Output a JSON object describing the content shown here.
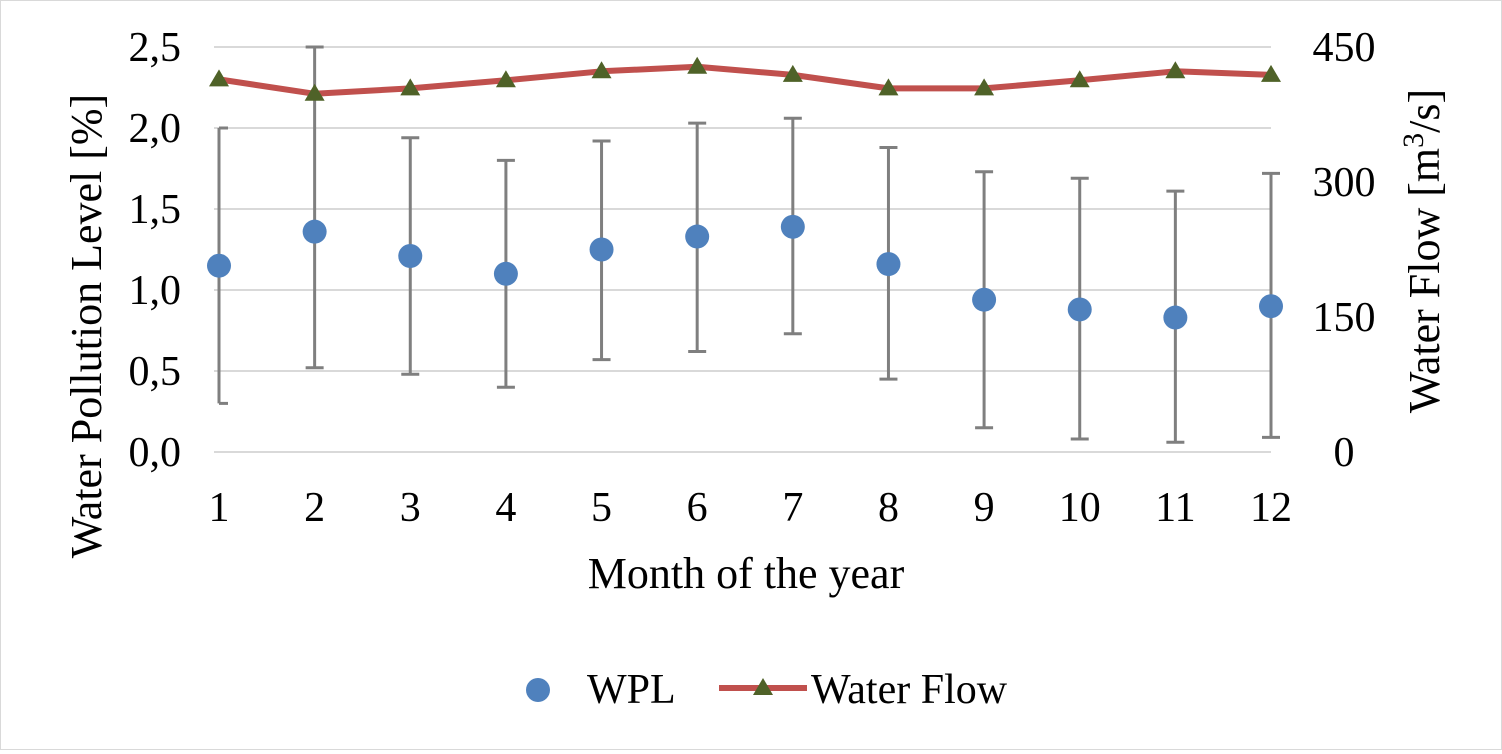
{
  "chart_data": {
    "type": "scatter",
    "xlabel": "Month of the year",
    "ylabel": "Water Pollution Level [%]",
    "y2label": "Water Flow [m3/s]",
    "x": [
      1,
      2,
      3,
      4,
      5,
      6,
      7,
      8,
      9,
      10,
      11,
      12
    ],
    "x_tick_labels": [
      "1",
      "2",
      "3",
      "4",
      "5",
      "6",
      "7",
      "8",
      "9",
      "10",
      "11",
      "12"
    ],
    "ylim": [
      0,
      2.5
    ],
    "y_tick_labels": [
      "0,0",
      "0,5",
      "1,0",
      "1,5",
      "2,0",
      "2,5"
    ],
    "y2lim": [
      0,
      450
    ],
    "y2_tick_labels": [
      "0",
      "150",
      "300",
      "450"
    ],
    "grid": true,
    "legend_position": "bottom",
    "series": [
      {
        "name": "WPL",
        "kind": "scatter",
        "axis": "left",
        "color": "#4f81bd",
        "values": [
          1.15,
          1.36,
          1.21,
          1.1,
          1.25,
          1.33,
          1.39,
          1.16,
          0.94,
          0.88,
          0.83,
          0.9
        ],
        "error_lower": [
          0.3,
          0.52,
          0.48,
          0.4,
          0.57,
          0.62,
          0.73,
          0.45,
          0.15,
          0.08,
          0.06,
          0.09
        ],
        "error_upper": [
          2.0,
          2.5,
          1.94,
          1.8,
          1.92,
          2.03,
          2.06,
          1.88,
          1.73,
          1.69,
          1.61,
          1.72
        ]
      },
      {
        "name": "Water Flow",
        "kind": "line",
        "axis": "right",
        "color": "#c0504d",
        "marker_color": "#4f6228",
        "values": [
          414,
          398,
          404,
          413,
          423,
          428,
          419,
          404,
          404,
          413,
          423,
          419
        ]
      }
    ]
  }
}
